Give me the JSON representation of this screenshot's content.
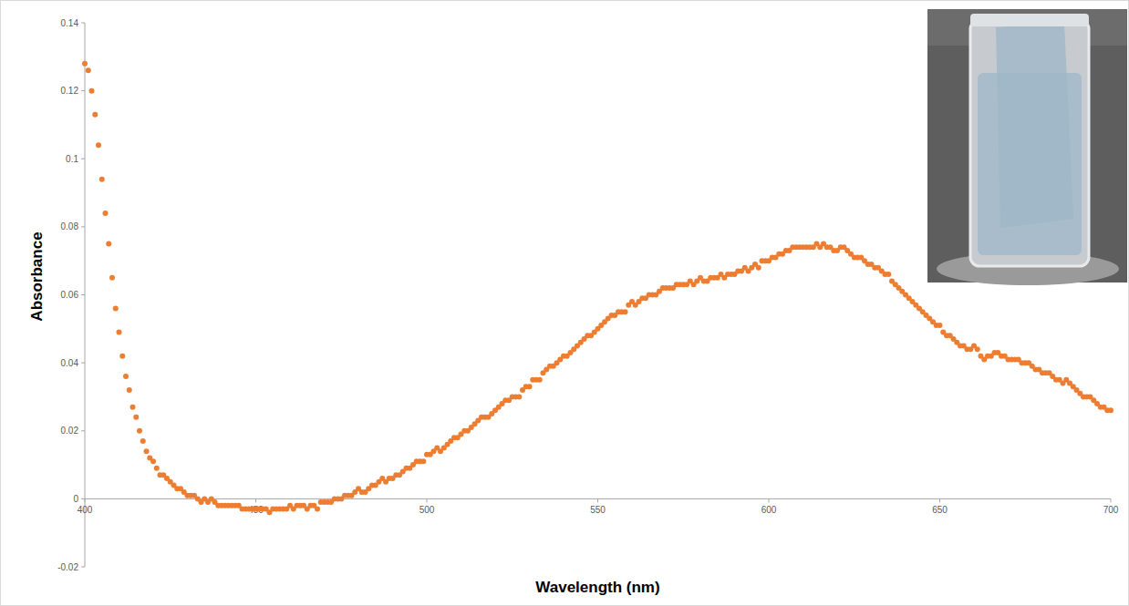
{
  "chart_data": {
    "type": "scatter",
    "x_label": "Wavelength (nm)",
    "y_label": "Absorbance",
    "color": "#ed7d31",
    "marker": "circle",
    "grid": false,
    "xlim": [
      400,
      700
    ],
    "xticks": [
      400,
      450,
      500,
      550,
      600,
      650,
      700
    ],
    "ylim": [
      -0.02,
      0.14
    ],
    "yticks": [
      -0.02,
      0,
      0.02,
      0.04,
      0.06,
      0.08,
      0.1,
      0.12,
      0.14
    ],
    "x": [
      400,
      401,
      402,
      403,
      404,
      405,
      406,
      407,
      408,
      409,
      410,
      411,
      412,
      413,
      414,
      415,
      416,
      417,
      418,
      419,
      420,
      421,
      422,
      423,
      424,
      425,
      426,
      427,
      428,
      429,
      430,
      431,
      432,
      433,
      434,
      435,
      436,
      437,
      438,
      439,
      440,
      441,
      442,
      443,
      444,
      445,
      446,
      447,
      448,
      449,
      450,
      451,
      452,
      453,
      454,
      455,
      456,
      457,
      458,
      459,
      460,
      461,
      462,
      463,
      464,
      465,
      466,
      467,
      468,
      469,
      470,
      471,
      472,
      473,
      474,
      475,
      476,
      477,
      478,
      479,
      480,
      481,
      482,
      483,
      484,
      485,
      486,
      487,
      488,
      489,
      490,
      491,
      492,
      493,
      494,
      495,
      496,
      497,
      498,
      499,
      500,
      501,
      502,
      503,
      504,
      505,
      506,
      507,
      508,
      509,
      510,
      511,
      512,
      513,
      514,
      515,
      516,
      517,
      518,
      519,
      520,
      521,
      522,
      523,
      524,
      525,
      526,
      527,
      528,
      529,
      530,
      531,
      532,
      533,
      534,
      535,
      536,
      537,
      538,
      539,
      540,
      541,
      542,
      543,
      544,
      545,
      546,
      547,
      548,
      549,
      550,
      551,
      552,
      553,
      554,
      555,
      556,
      557,
      558,
      559,
      560,
      561,
      562,
      563,
      564,
      565,
      566,
      567,
      568,
      569,
      570,
      571,
      572,
      573,
      574,
      575,
      576,
      577,
      578,
      579,
      580,
      581,
      582,
      583,
      584,
      585,
      586,
      587,
      588,
      589,
      590,
      591,
      592,
      593,
      594,
      595,
      596,
      597,
      598,
      599,
      600,
      601,
      602,
      603,
      604,
      605,
      606,
      607,
      608,
      609,
      610,
      611,
      612,
      613,
      614,
      615,
      616,
      617,
      618,
      619,
      620,
      621,
      622,
      623,
      624,
      625,
      626,
      627,
      628,
      629,
      630,
      631,
      632,
      633,
      634,
      635,
      636,
      637,
      638,
      639,
      640,
      641,
      642,
      643,
      644,
      645,
      646,
      647,
      648,
      649,
      650,
      651,
      652,
      653,
      654,
      655,
      656,
      657,
      658,
      659,
      660,
      661,
      662,
      663,
      664,
      665,
      666,
      667,
      668,
      669,
      670,
      671,
      672,
      673,
      674,
      675,
      676,
      677,
      678,
      679,
      680,
      681,
      682,
      683,
      684,
      685,
      686,
      687,
      688,
      689,
      690,
      691,
      692,
      693,
      694,
      695,
      696,
      697,
      698,
      699,
      700
    ],
    "values": [
      0.128,
      0.126,
      0.12,
      0.113,
      0.104,
      0.094,
      0.084,
      0.075,
      0.065,
      0.056,
      0.049,
      0.042,
      0.036,
      0.032,
      0.027,
      0.024,
      0.02,
      0.017,
      0.014,
      0.012,
      0.011,
      0.009,
      0.007,
      0.007,
      0.006,
      0.005,
      0.004,
      0.003,
      0.003,
      0.002,
      0.001,
      0.001,
      0.001,
      0,
      -0.001,
      0,
      -0.001,
      0,
      -0.001,
      -0.002,
      -0.002,
      -0.002,
      -0.002,
      -0.002,
      -0.002,
      -0.002,
      -0.003,
      -0.003,
      -0.003,
      -0.003,
      -0.003,
      -0.003,
      -0.003,
      -0.003,
      -0.004,
      -0.003,
      -0.003,
      -0.003,
      -0.003,
      -0.003,
      -0.002,
      -0.003,
      -0.002,
      -0.002,
      -0.002,
      -0.003,
      -0.002,
      -0.002,
      -0.003,
      -0.001,
      -0.001,
      -0.001,
      -0.001,
      0,
      0,
      0,
      0.001,
      0.001,
      0.001,
      0.002,
      0.003,
      0.002,
      0.002,
      0.003,
      0.004,
      0.004,
      0.005,
      0.006,
      0.005,
      0.006,
      0.006,
      0.007,
      0.007,
      0.008,
      0.009,
      0.009,
      0.01,
      0.011,
      0.011,
      0.011,
      0.013,
      0.013,
      0.014,
      0.015,
      0.014,
      0.015,
      0.016,
      0.017,
      0.018,
      0.018,
      0.019,
      0.02,
      0.02,
      0.021,
      0.022,
      0.023,
      0.024,
      0.024,
      0.024,
      0.025,
      0.026,
      0.027,
      0.028,
      0.029,
      0.029,
      0.03,
      0.03,
      0.03,
      0.032,
      0.033,
      0.033,
      0.035,
      0.035,
      0.035,
      0.037,
      0.038,
      0.039,
      0.039,
      0.04,
      0.041,
      0.042,
      0.042,
      0.043,
      0.044,
      0.045,
      0.046,
      0.047,
      0.048,
      0.048,
      0.049,
      0.05,
      0.051,
      0.052,
      0.053,
      0.054,
      0.054,
      0.055,
      0.055,
      0.055,
      0.057,
      0.058,
      0.057,
      0.058,
      0.059,
      0.059,
      0.06,
      0.06,
      0.06,
      0.061,
      0.062,
      0.062,
      0.062,
      0.062,
      0.063,
      0.063,
      0.063,
      0.063,
      0.064,
      0.063,
      0.064,
      0.065,
      0.064,
      0.064,
      0.065,
      0.065,
      0.065,
      0.066,
      0.065,
      0.066,
      0.066,
      0.066,
      0.067,
      0.067,
      0.068,
      0.067,
      0.068,
      0.069,
      0.068,
      0.07,
      0.07,
      0.07,
      0.071,
      0.071,
      0.072,
      0.072,
      0.073,
      0.073,
      0.074,
      0.074,
      0.074,
      0.074,
      0.074,
      0.074,
      0.074,
      0.075,
      0.074,
      0.075,
      0.074,
      0.074,
      0.073,
      0.073,
      0.074,
      0.074,
      0.073,
      0.072,
      0.071,
      0.071,
      0.071,
      0.07,
      0.069,
      0.069,
      0.068,
      0.068,
      0.067,
      0.066,
      0.066,
      0.064,
      0.063,
      0.062,
      0.061,
      0.06,
      0.059,
      0.058,
      0.057,
      0.056,
      0.055,
      0.054,
      0.053,
      0.052,
      0.051,
      0.051,
      0.049,
      0.048,
      0.048,
      0.047,
      0.046,
      0.045,
      0.045,
      0.044,
      0.044,
      0.045,
      0.044,
      0.042,
      0.041,
      0.042,
      0.042,
      0.043,
      0.043,
      0.042,
      0.042,
      0.041,
      0.041,
      0.041,
      0.041,
      0.04,
      0.04,
      0.04,
      0.039,
      0.038,
      0.038,
      0.037,
      0.037,
      0.037,
      0.036,
      0.035,
      0.035,
      0.034,
      0.035,
      0.034,
      0.033,
      0.032,
      0.031,
      0.03,
      0.03,
      0.03,
      0.029,
      0.028,
      0.027,
      0.027,
      0.026,
      0.026
    ]
  }
}
